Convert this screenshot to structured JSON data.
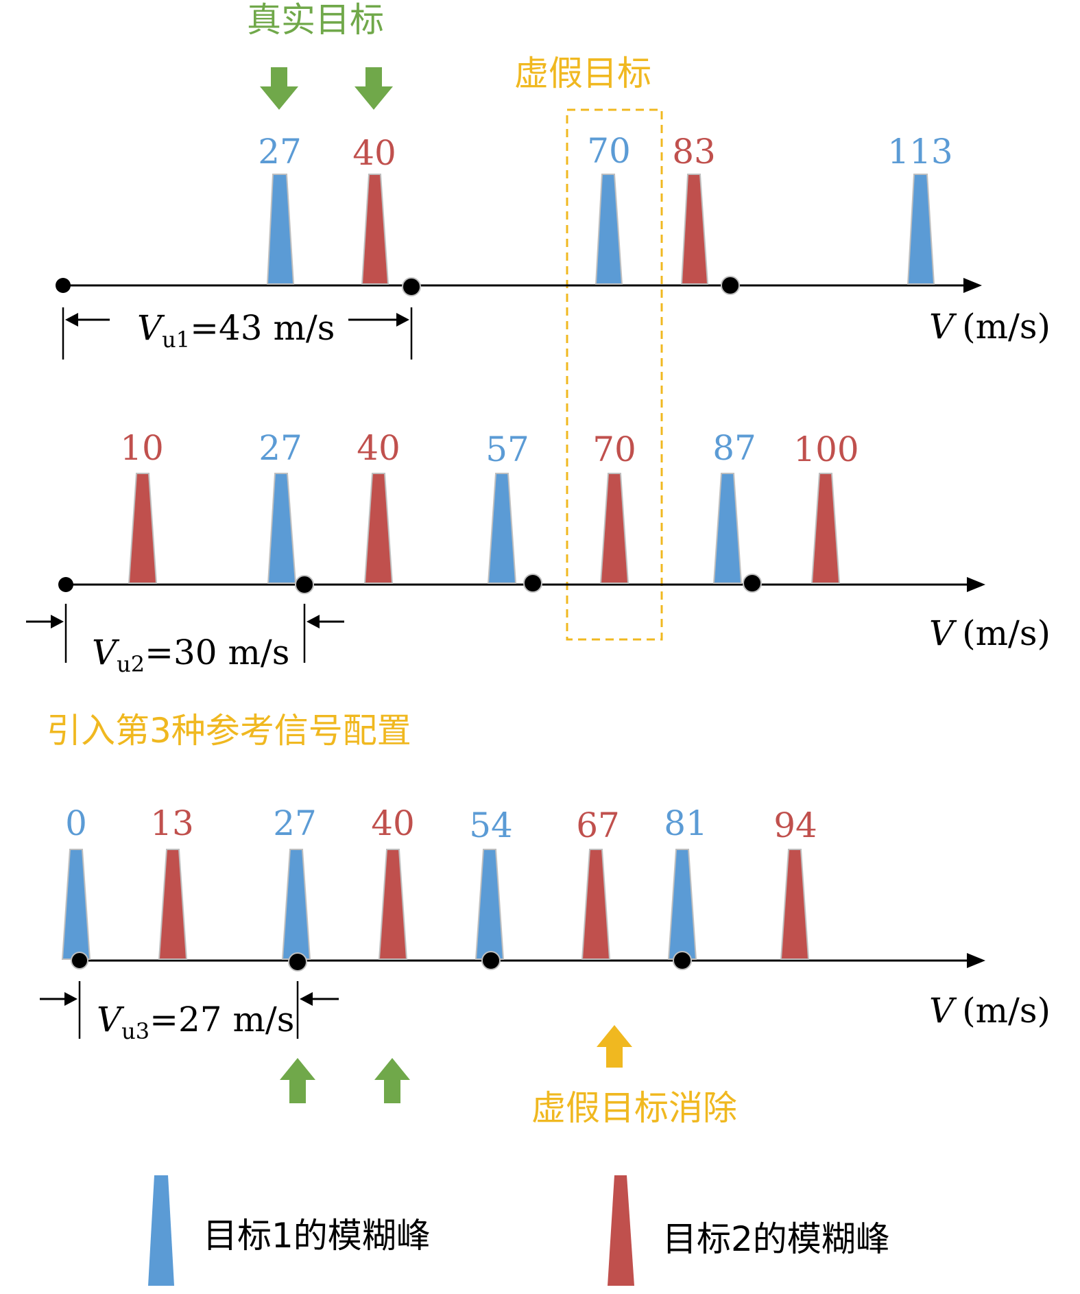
{
  "colors": {
    "target1": "#5b9bd5",
    "target2": "#c0504d",
    "green": "#70a84a",
    "orange": "#f0b820",
    "black": "#000000",
    "outline": "#bfbfbf"
  },
  "annotations": {
    "true_target": "真实目标",
    "false_target": "虚假目标",
    "third_config": "引入第3种参考信号配置",
    "false_target_removed": "虚假目标消除"
  },
  "axis_label": {
    "var": "V",
    "unit": "(m/s)"
  },
  "rows": [
    {
      "id": "row1",
      "interval": {
        "sym": "V",
        "sub": "u1",
        "text": "=43 m/s"
      },
      "peaks": [
        {
          "label": "27",
          "target": 1
        },
        {
          "label": "40",
          "target": 2
        },
        {
          "label": "70",
          "target": 1
        },
        {
          "label": "83",
          "target": 2
        },
        {
          "label": "113",
          "target": 1
        }
      ]
    },
    {
      "id": "row2",
      "interval": {
        "sym": "V",
        "sub": "u2",
        "text": "=30 m/s"
      },
      "peaks": [
        {
          "label": "10",
          "target": 2
        },
        {
          "label": "27",
          "target": 1
        },
        {
          "label": "40",
          "target": 2
        },
        {
          "label": "57",
          "target": 1
        },
        {
          "label": "70",
          "target": 2
        },
        {
          "label": "87",
          "target": 1
        },
        {
          "label": "100",
          "target": 2
        }
      ]
    },
    {
      "id": "row3",
      "interval": {
        "sym": "V",
        "sub": "u3",
        "text": "=27 m/s"
      },
      "peaks": [
        {
          "label": "0",
          "target": 1
        },
        {
          "label": "13",
          "target": 2
        },
        {
          "label": "27",
          "target": 1
        },
        {
          "label": "40",
          "target": 2
        },
        {
          "label": "54",
          "target": 1
        },
        {
          "label": "67",
          "target": 2
        },
        {
          "label": "81",
          "target": 1
        },
        {
          "label": "94",
          "target": 2
        }
      ]
    }
  ],
  "legend": [
    {
      "label": "目标1的模糊峰",
      "target": 1
    },
    {
      "label": "目标2的模糊峰",
      "target": 2
    }
  ]
}
